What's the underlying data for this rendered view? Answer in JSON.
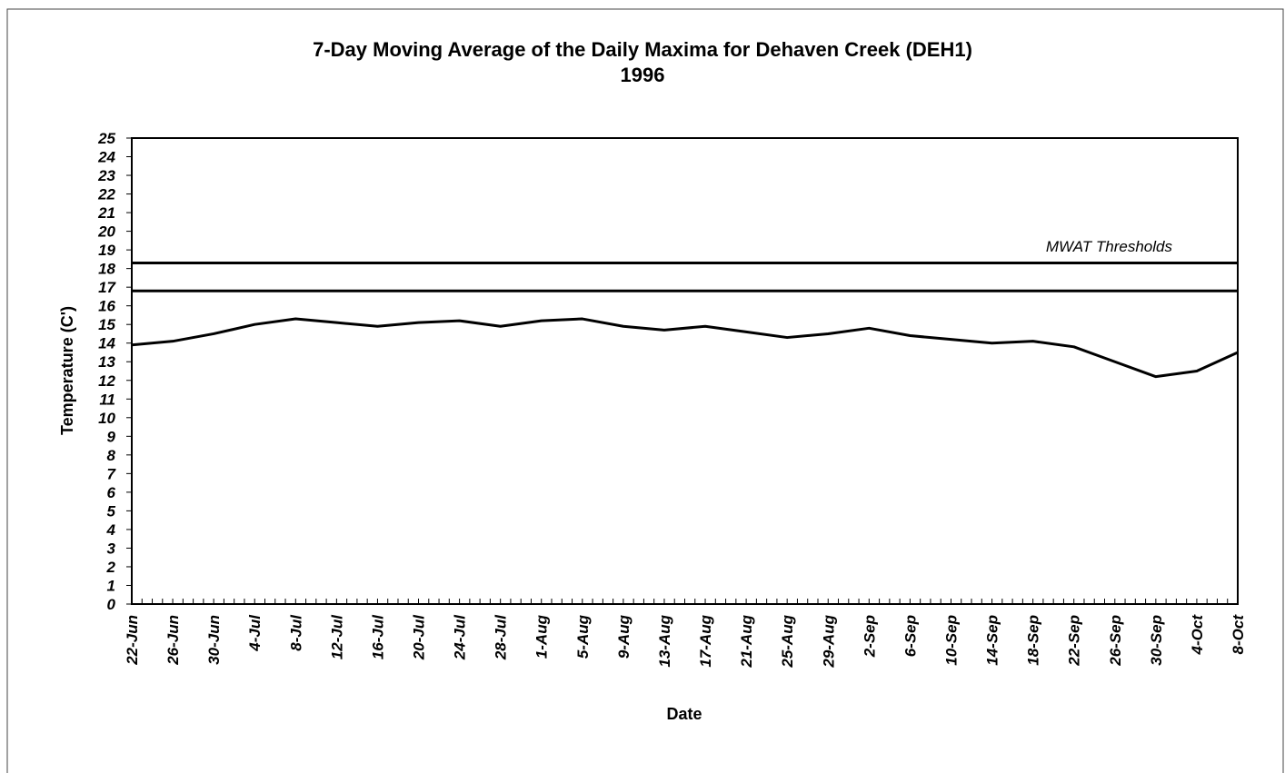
{
  "chart_data": {
    "type": "line",
    "title": "7-Day Moving Average of the Daily Maxima for Dehaven Creek (DEH1)",
    "subtitle": "1996",
    "x_label": "Date",
    "y_label": "Temperature (C')",
    "annotation": "MWAT Thresholds",
    "thresholds": [
      18.3,
      16.8
    ],
    "categories": [
      "22-Jun",
      "26-Jun",
      "30-Jun",
      "4-Jul",
      "8-Jul",
      "12-Jul",
      "16-Jul",
      "20-Jul",
      "24-Jul",
      "28-Jul",
      "1-Aug",
      "5-Aug",
      "9-Aug",
      "13-Aug",
      "17-Aug",
      "21-Aug",
      "25-Aug",
      "29-Aug",
      "2-Sep",
      "6-Sep",
      "10-Sep",
      "14-Sep",
      "18-Sep",
      "22-Sep",
      "26-Sep",
      "30-Sep",
      "4-Oct",
      "8-Oct"
    ],
    "series": [
      {
        "color": "#000000",
        "values": [
          13.9,
          14.1,
          14.5,
          15.0,
          15.3,
          15.1,
          14.9,
          15.1,
          15.2,
          14.9,
          15.2,
          15.3,
          14.9,
          14.7,
          14.9,
          14.6,
          14.3,
          14.5,
          14.8,
          14.4,
          14.2,
          14.0,
          14.1,
          13.8,
          13.0,
          12.2,
          12.5,
          13.5
        ]
      }
    ],
    "ylim": [
      0,
      25
    ],
    "yticks": [
      0,
      1,
      2,
      3,
      4,
      5,
      6,
      7,
      8,
      9,
      10,
      11,
      12,
      13,
      14,
      15,
      16,
      17,
      18,
      19,
      20,
      21,
      22,
      23,
      24,
      25
    ]
  }
}
